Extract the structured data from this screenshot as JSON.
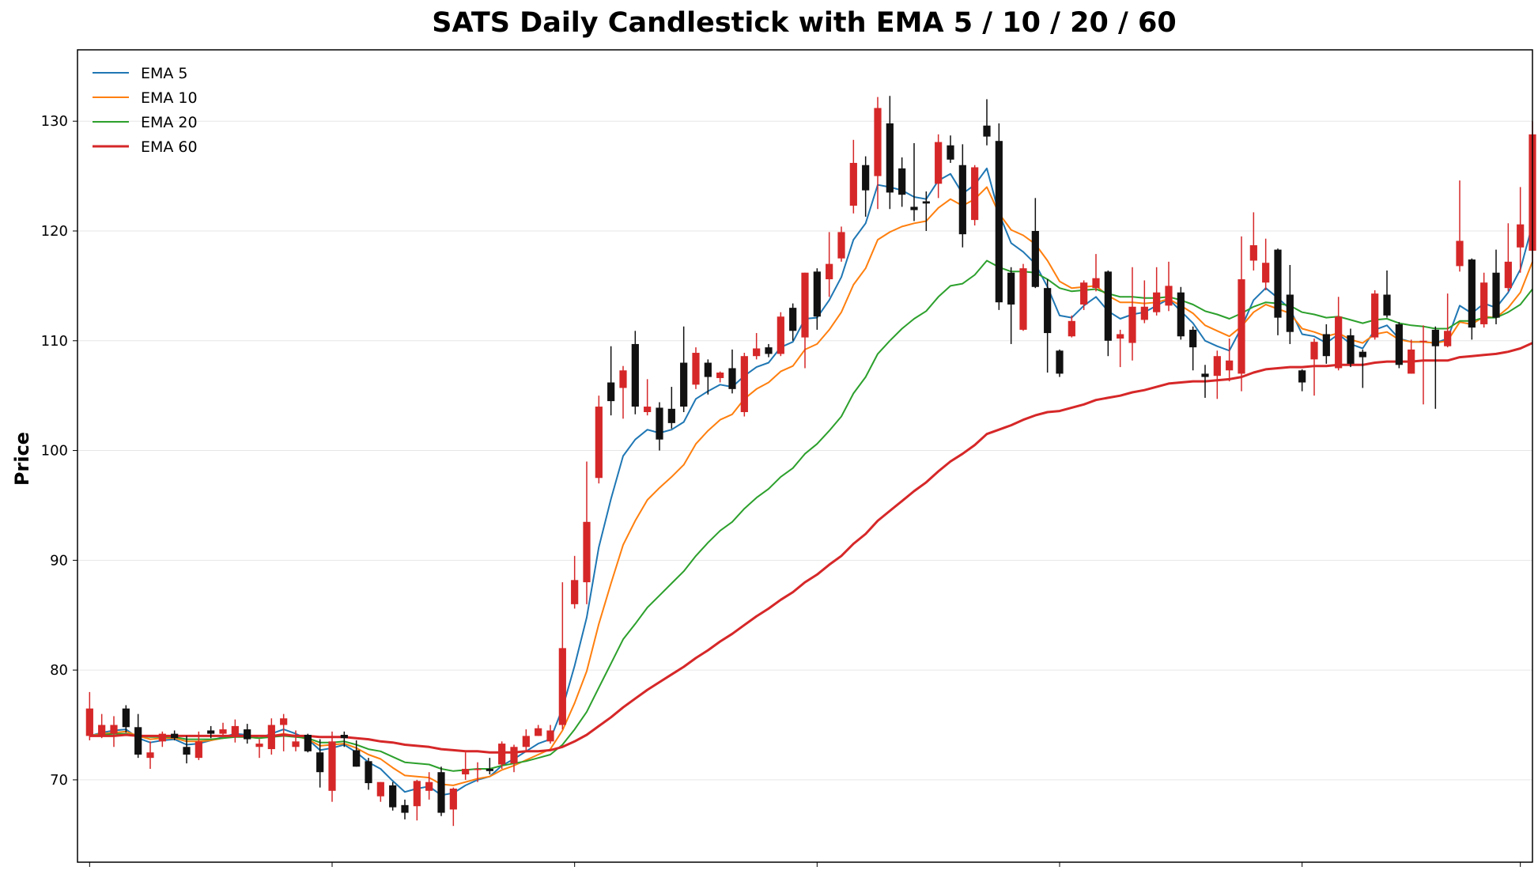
{
  "chart_data": {
    "type": "candlestick",
    "title": "SATS Daily Candlestick with EMA 5 / 10 / 20 / 60",
    "xlabel": "",
    "ylabel": "Price",
    "ylim": [
      62.5,
      136.5
    ],
    "yticks": [
      70,
      80,
      90,
      100,
      110,
      120,
      130
    ],
    "ytick_labels": [
      "70",
      "80",
      "90",
      "100",
      "110",
      "120",
      "130"
    ],
    "xlim": [
      -1,
      119
    ],
    "xticks": [
      0,
      20,
      40,
      60,
      80,
      100,
      118
    ],
    "grid": "horizontal",
    "legend_position": "top-left",
    "up_color": "#d62728",
    "down_color": "#111111",
    "ohlc": [
      [
        74.0,
        78.0,
        73.6,
        76.5
      ],
      [
        74.0,
        76.0,
        73.8,
        75.0
      ],
      [
        74.2,
        75.8,
        73.0,
        75.0
      ],
      [
        76.5,
        76.8,
        74.3,
        74.8
      ],
      [
        74.8,
        76.0,
        72.0,
        72.3
      ],
      [
        72.0,
        73.5,
        71.0,
        72.5
      ],
      [
        73.5,
        74.4,
        73.0,
        74.2
      ],
      [
        74.2,
        74.5,
        73.6,
        73.8
      ],
      [
        73.0,
        74.0,
        71.5,
        72.3
      ],
      [
        72.0,
        74.4,
        71.8,
        73.5
      ],
      [
        74.5,
        74.9,
        73.8,
        74.2
      ],
      [
        74.2,
        75.2,
        74.0,
        74.6
      ],
      [
        73.9,
        75.5,
        73.4,
        74.9
      ],
      [
        74.6,
        75.1,
        73.3,
        73.7
      ],
      [
        73.0,
        73.7,
        72.0,
        73.3
      ],
      [
        72.8,
        75.6,
        72.3,
        75.0
      ],
      [
        75.0,
        76.0,
        72.6,
        75.6
      ],
      [
        73.0,
        74.5,
        72.6,
        73.5
      ],
      [
        74.1,
        74.2,
        72.5,
        72.6
      ],
      [
        72.5,
        73.7,
        69.3,
        70.7
      ],
      [
        69.0,
        74.4,
        68.0,
        73.5
      ],
      [
        74.1,
        74.4,
        73.0,
        73.8
      ],
      [
        72.7,
        73.6,
        71.2,
        71.2
      ],
      [
        71.7,
        72.0,
        69.1,
        69.7
      ],
      [
        68.5,
        69.8,
        68.0,
        69.8
      ],
      [
        69.5,
        69.8,
        67.2,
        67.5
      ],
      [
        67.7,
        68.2,
        66.4,
        67.0
      ],
      [
        67.6,
        70.0,
        66.3,
        69.9
      ],
      [
        69.0,
        70.7,
        68.2,
        69.8
      ],
      [
        70.7,
        71.2,
        66.7,
        67.0
      ],
      [
        67.3,
        69.3,
        65.8,
        69.2
      ],
      [
        70.5,
        72.5,
        70.0,
        71.0
      ],
      [
        70.9,
        71.6,
        69.8,
        71.0
      ],
      [
        71.0,
        72.0,
        70.5,
        70.8
      ],
      [
        71.4,
        73.5,
        71.0,
        73.3
      ],
      [
        71.5,
        73.2,
        70.7,
        73.0
      ],
      [
        73.0,
        74.6,
        72.5,
        74.0
      ],
      [
        74.0,
        75.0,
        74.0,
        74.7
      ],
      [
        73.5,
        75.0,
        73.3,
        74.5
      ],
      [
        75.0,
        88.0,
        74.6,
        82.0
      ],
      [
        86.0,
        90.4,
        85.6,
        88.2
      ],
      [
        88.0,
        99.0,
        86.0,
        93.5
      ],
      [
        97.5,
        105.0,
        97.0,
        104.0
      ],
      [
        106.2,
        109.5,
        103.2,
        104.5
      ],
      [
        105.7,
        107.7,
        102.9,
        107.3
      ],
      [
        109.7,
        110.9,
        103.3,
        104.0
      ],
      [
        103.5,
        106.5,
        103.2,
        104.0
      ],
      [
        103.9,
        104.4,
        100.0,
        101.0
      ],
      [
        103.8,
        105.8,
        102.0,
        102.5
      ],
      [
        108.0,
        111.3,
        103.5,
        104.0
      ],
      [
        106.0,
        109.4,
        105.6,
        108.9
      ],
      [
        108.0,
        108.3,
        105.1,
        106.7
      ],
      [
        106.6,
        107.2,
        106.2,
        107.1
      ],
      [
        107.5,
        109.2,
        105.2,
        105.6
      ],
      [
        103.5,
        108.9,
        103.1,
        108.6
      ],
      [
        108.6,
        110.7,
        108.3,
        109.3
      ],
      [
        109.4,
        109.7,
        108.5,
        108.8
      ],
      [
        108.8,
        112.6,
        108.6,
        112.2
      ],
      [
        113.0,
        113.4,
        110.0,
        110.9
      ],
      [
        110.3,
        116.2,
        107.5,
        116.2
      ],
      [
        116.3,
        116.6,
        111.0,
        112.2
      ],
      [
        115.6,
        119.9,
        114.0,
        117.0
      ],
      [
        117.5,
        120.4,
        117.2,
        119.9
      ],
      [
        122.3,
        128.3,
        121.6,
        126.2
      ],
      [
        126.0,
        126.8,
        121.3,
        123.7
      ],
      [
        125.0,
        132.2,
        122.0,
        131.2
      ],
      [
        129.8,
        132.3,
        122.0,
        123.5
      ],
      [
        125.7,
        126.7,
        122.2,
        123.3
      ],
      [
        122.2,
        128.0,
        120.9,
        121.9
      ],
      [
        122.7,
        123.6,
        120.0,
        122.5
      ],
      [
        124.3,
        128.8,
        123.0,
        128.1
      ],
      [
        127.8,
        128.7,
        126.2,
        126.5
      ],
      [
        126.0,
        127.9,
        118.5,
        119.7
      ],
      [
        121.0,
        126.0,
        120.5,
        125.8
      ],
      [
        129.6,
        132.0,
        127.8,
        128.6
      ],
      [
        128.2,
        129.8,
        112.8,
        113.5
      ],
      [
        116.2,
        116.7,
        109.7,
        113.3
      ],
      [
        111.0,
        117.0,
        110.9,
        116.6
      ],
      [
        120.0,
        123.0,
        114.8,
        114.9
      ],
      [
        114.8,
        115.6,
        107.1,
        110.7
      ],
      [
        109.1,
        109.2,
        106.7,
        107.0
      ],
      [
        110.4,
        112.3,
        110.3,
        111.8
      ],
      [
        113.3,
        115.5,
        112.8,
        115.3
      ],
      [
        114.8,
        117.9,
        114.5,
        115.7
      ],
      [
        116.3,
        116.4,
        108.6,
        110.0
      ],
      [
        110.2,
        111.0,
        107.6,
        110.6
      ],
      [
        109.8,
        116.7,
        108.2,
        113.1
      ],
      [
        111.9,
        115.5,
        111.6,
        113.1
      ],
      [
        112.6,
        116.7,
        112.3,
        114.4
      ],
      [
        113.2,
        117.2,
        112.7,
        115.0
      ],
      [
        114.4,
        114.9,
        110.1,
        110.4
      ],
      [
        111.0,
        111.3,
        107.3,
        109.4
      ],
      [
        107.0,
        107.8,
        104.8,
        106.7
      ],
      [
        106.8,
        109.1,
        104.7,
        108.6
      ],
      [
        107.3,
        110.2,
        106.3,
        108.2
      ],
      [
        107.0,
        119.5,
        105.4,
        115.6
      ],
      [
        117.3,
        121.7,
        116.4,
        118.7
      ],
      [
        115.3,
        119.3,
        114.6,
        117.1
      ],
      [
        118.3,
        118.4,
        110.5,
        112.1
      ],
      [
        114.2,
        116.9,
        109.7,
        110.8
      ],
      [
        107.3,
        107.4,
        105.4,
        106.2
      ],
      [
        108.3,
        110.2,
        105.0,
        109.9
      ],
      [
        110.6,
        111.5,
        107.9,
        108.6
      ],
      [
        107.5,
        114.0,
        107.3,
        112.2
      ],
      [
        110.5,
        111.1,
        107.6,
        107.9
      ],
      [
        109.0,
        109.2,
        105.7,
        108.5
      ],
      [
        110.3,
        114.6,
        110.1,
        114.3
      ],
      [
        114.2,
        116.4,
        112.1,
        112.3
      ],
      [
        111.5,
        111.7,
        107.5,
        107.8
      ],
      [
        107.0,
        110.1,
        107.0,
        109.2
      ],
      [
        110.0,
        111.4,
        104.2,
        110.0
      ],
      [
        111.0,
        111.3,
        103.8,
        109.5
      ],
      [
        109.5,
        114.3,
        109.4,
        110.9
      ],
      [
        116.8,
        124.6,
        116.3,
        119.1
      ],
      [
        117.4,
        117.5,
        110.1,
        111.2
      ],
      [
        111.5,
        116.2,
        111.2,
        115.3
      ],
      [
        116.2,
        118.3,
        111.5,
        112.1
      ],
      [
        114.8,
        120.7,
        114.5,
        117.2
      ],
      [
        118.5,
        124.0,
        116.2,
        120.6
      ],
      [
        118.2,
        130.0,
        117.0,
        128.8
      ]
    ],
    "series": [
      {
        "name": "EMA 5",
        "color": "#1f77b4",
        "values": [
          74.0,
          74.3,
          74.5,
          74.6,
          73.8,
          73.4,
          73.6,
          73.7,
          73.2,
          73.3,
          73.6,
          73.9,
          74.2,
          74.1,
          73.8,
          74.2,
          74.6,
          74.2,
          73.7,
          72.7,
          72.9,
          73.2,
          72.5,
          71.6,
          71.0,
          69.9,
          68.9,
          69.2,
          69.4,
          68.6,
          68.8,
          69.5,
          70.0,
          70.3,
          71.3,
          71.9,
          72.6,
          73.3,
          73.7,
          76.5,
          80.4,
          84.8,
          91.2,
          95.6,
          99.5,
          101.0,
          101.9,
          101.6,
          101.9,
          102.6,
          104.7,
          105.4,
          106.0,
          105.8,
          106.8,
          107.6,
          108.0,
          109.4,
          109.9,
          112.0,
          112.1,
          113.7,
          115.8,
          119.2,
          120.7,
          124.2,
          124.0,
          123.7,
          123.1,
          122.9,
          124.6,
          125.2,
          123.4,
          124.2,
          125.7,
          121.6,
          118.9,
          118.1,
          117.0,
          114.9,
          112.3,
          112.1,
          113.2,
          114.0,
          112.7,
          112.0,
          112.4,
          112.6,
          113.2,
          113.8,
          112.7,
          111.6,
          110.0,
          109.5,
          109.1,
          111.2,
          113.7,
          114.8,
          113.9,
          112.9,
          110.6,
          110.4,
          109.8,
          110.6,
          109.7,
          109.3,
          111.0,
          111.4,
          110.2,
          109.9,
          109.9,
          109.8,
          110.2,
          113.2,
          112.5,
          113.4,
          113.0,
          114.4,
          116.5,
          120.6
        ]
      },
      {
        "name": "EMA 10",
        "color": "#ff7f0e",
        "values": [
          74.0,
          74.2,
          74.3,
          74.4,
          74.0,
          73.7,
          73.8,
          73.8,
          73.5,
          73.5,
          73.6,
          73.8,
          74.0,
          73.9,
          73.8,
          74.0,
          74.2,
          74.0,
          73.7,
          73.1,
          73.2,
          73.3,
          72.9,
          72.3,
          71.9,
          71.1,
          70.4,
          70.3,
          70.2,
          69.6,
          69.5,
          69.8,
          70.1,
          70.3,
          70.9,
          71.3,
          71.8,
          72.3,
          72.8,
          74.5,
          77.0,
          79.9,
          84.2,
          87.9,
          91.4,
          93.6,
          95.5,
          96.6,
          97.6,
          98.7,
          100.6,
          101.8,
          102.8,
          103.3,
          104.7,
          105.6,
          106.2,
          107.2,
          107.7,
          109.2,
          109.7,
          111.0,
          112.6,
          115.1,
          116.6,
          119.2,
          119.9,
          120.4,
          120.7,
          120.9,
          122.1,
          122.9,
          122.3,
          122.9,
          124.0,
          121.6,
          120.1,
          119.6,
          118.8,
          117.3,
          115.4,
          114.8,
          114.9,
          115.0,
          114.1,
          113.5,
          113.5,
          113.4,
          113.5,
          113.8,
          113.2,
          112.5,
          111.4,
          110.9,
          110.4,
          111.3,
          112.6,
          113.3,
          112.9,
          112.5,
          111.1,
          110.8,
          110.4,
          110.7,
          110.1,
          109.8,
          110.6,
          110.8,
          110.1,
          109.9,
          109.9,
          109.8,
          110.0,
          111.7,
          111.5,
          112.2,
          112.1,
          113.0,
          114.4,
          117.2
        ]
      },
      {
        "name": "EMA 20",
        "color": "#2ca02c",
        "values": [
          74.0,
          74.1,
          74.2,
          74.2,
          74.0,
          73.9,
          73.9,
          73.9,
          73.7,
          73.7,
          73.7,
          73.8,
          73.9,
          73.9,
          73.8,
          73.9,
          74.0,
          73.9,
          73.8,
          73.4,
          73.4,
          73.5,
          73.2,
          72.8,
          72.6,
          72.1,
          71.6,
          71.5,
          71.4,
          71.0,
          70.8,
          70.9,
          71.0,
          71.0,
          71.3,
          71.5,
          71.7,
          72.0,
          72.3,
          73.2,
          74.6,
          76.2,
          78.4,
          80.6,
          82.8,
          84.2,
          85.7,
          86.8,
          87.9,
          89.0,
          90.4,
          91.6,
          92.7,
          93.5,
          94.7,
          95.7,
          96.5,
          97.6,
          98.4,
          99.7,
          100.6,
          101.8,
          103.1,
          105.2,
          106.7,
          108.8,
          110.0,
          111.1,
          112.0,
          112.7,
          114.0,
          115.0,
          115.2,
          116.0,
          117.3,
          116.7,
          116.3,
          116.3,
          116.2,
          115.6,
          114.8,
          114.5,
          114.6,
          114.7,
          114.3,
          114.0,
          114.0,
          113.9,
          113.9,
          114.0,
          113.7,
          113.3,
          112.7,
          112.4,
          112.0,
          112.5,
          113.1,
          113.5,
          113.4,
          113.2,
          112.6,
          112.4,
          112.1,
          112.2,
          111.9,
          111.6,
          111.9,
          112.0,
          111.6,
          111.4,
          111.3,
          111.1,
          111.1,
          111.8,
          111.8,
          112.1,
          112.1,
          112.6,
          113.3,
          114.7
        ]
      },
      {
        "name": "EMA 60",
        "color": "#d62728",
        "values": [
          74.0,
          74.0,
          74.0,
          74.1,
          74.0,
          74.0,
          74.0,
          74.0,
          74.0,
          74.0,
          74.0,
          74.0,
          74.0,
          74.0,
          74.0,
          74.0,
          74.1,
          74.0,
          74.0,
          73.9,
          73.9,
          73.9,
          73.8,
          73.7,
          73.5,
          73.4,
          73.2,
          73.1,
          73.0,
          72.8,
          72.7,
          72.6,
          72.6,
          72.5,
          72.5,
          72.5,
          72.6,
          72.6,
          72.7,
          73.0,
          73.5,
          74.1,
          74.9,
          75.7,
          76.6,
          77.4,
          78.2,
          78.9,
          79.6,
          80.3,
          81.1,
          81.8,
          82.6,
          83.3,
          84.1,
          84.9,
          85.6,
          86.4,
          87.1,
          88.0,
          88.7,
          89.6,
          90.4,
          91.5,
          92.4,
          93.6,
          94.5,
          95.4,
          96.3,
          97.1,
          98.1,
          99.0,
          99.7,
          100.5,
          101.5,
          101.9,
          102.3,
          102.8,
          103.2,
          103.5,
          103.6,
          103.9,
          104.2,
          104.6,
          104.8,
          105.0,
          105.3,
          105.5,
          105.8,
          106.1,
          106.2,
          106.3,
          106.3,
          106.4,
          106.5,
          106.7,
          107.1,
          107.4,
          107.5,
          107.6,
          107.6,
          107.7,
          107.7,
          107.8,
          107.8,
          107.8,
          108.0,
          108.1,
          108.1,
          108.1,
          108.2,
          108.2,
          108.2,
          108.5,
          108.6,
          108.7,
          108.8,
          109.0,
          109.3,
          109.8
        ]
      }
    ]
  }
}
